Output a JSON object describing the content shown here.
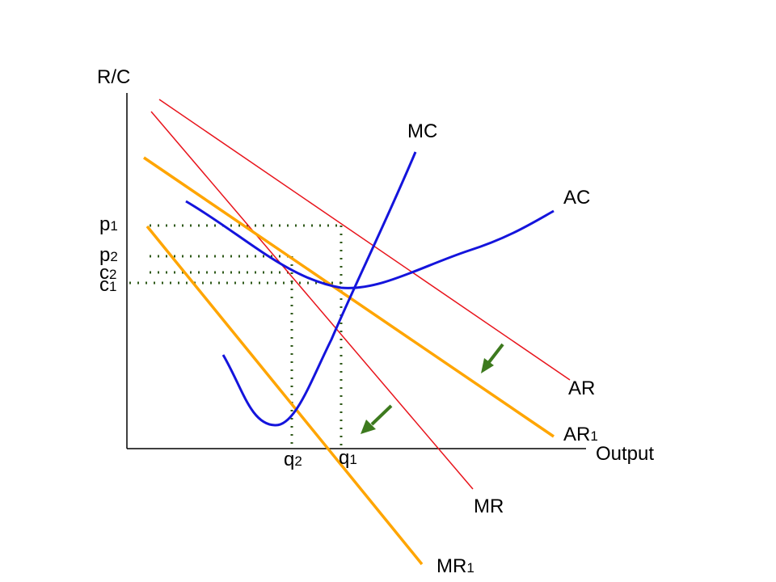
{
  "axes": {
    "y_label": "R/C",
    "x_label": "Output"
  },
  "curves": {
    "ar": {
      "label": "AR",
      "color": "#e8141c"
    },
    "mr": {
      "label": "MR",
      "color": "#e8141c"
    },
    "ar1": {
      "label": "AR",
      "sub": "1",
      "color": "#ffa500"
    },
    "mr1": {
      "label": "MR",
      "sub": "1",
      "color": "#ffa500"
    },
    "mc": {
      "label": "MC",
      "color": "#1414dc"
    },
    "ac": {
      "label": "AC",
      "color": "#1414dc"
    }
  },
  "levels": {
    "p1": {
      "main": "p",
      "sub": "1"
    },
    "p2": {
      "main": "p",
      "sub": "2"
    },
    "c2": {
      "main": "c",
      "sub": "2"
    },
    "c1": {
      "main": "c",
      "sub": "1"
    }
  },
  "quantities": {
    "q2": {
      "main": "q",
      "sub": "2"
    },
    "q1": {
      "main": "q",
      "sub": "1"
    }
  },
  "style": {
    "guide_color": "#2f5a1a",
    "arrow_color": "#3d7a1e",
    "axis_color": "#000000"
  }
}
